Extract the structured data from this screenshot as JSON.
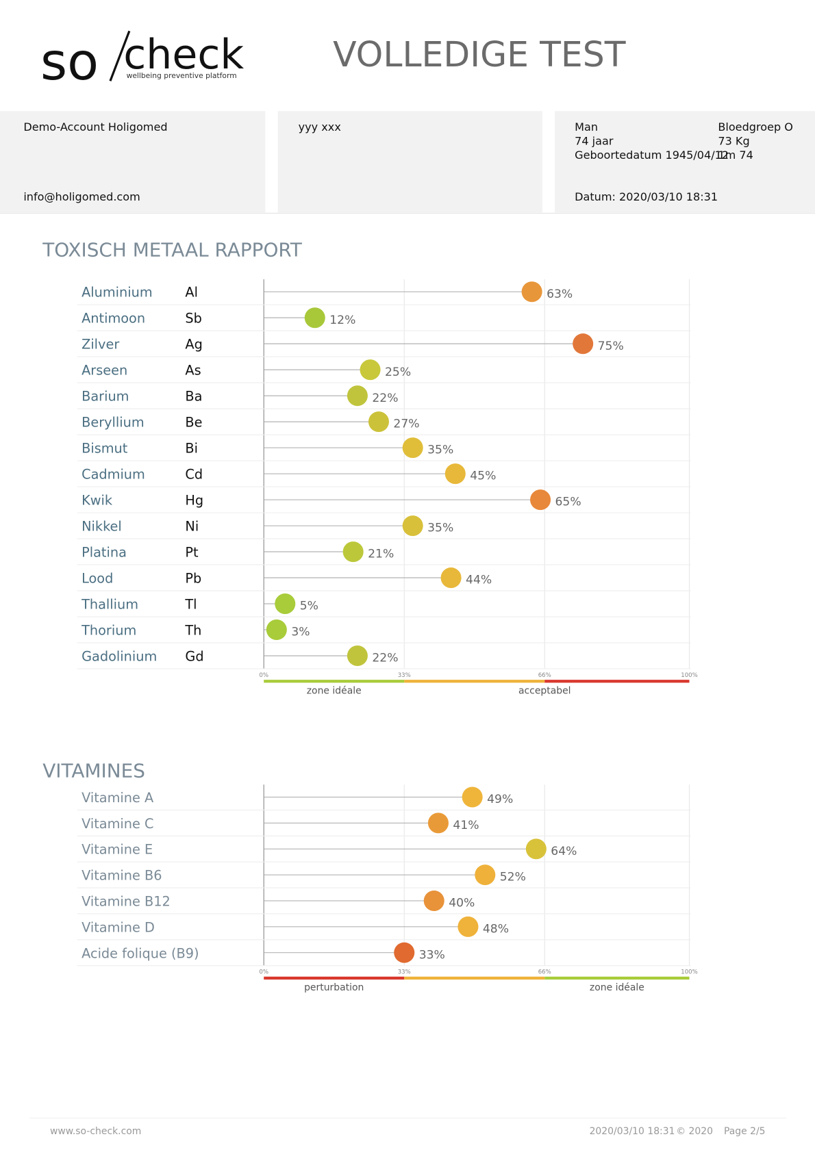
{
  "header": {
    "logo_so": "so",
    "logo_check": "check",
    "tagline": "wellbeing preventive platform",
    "title": "VOLLEDIGE TEST"
  },
  "info": {
    "account": "Demo-Account Holigomed",
    "email": "info@holigomed.com",
    "name": "yyy xxx",
    "gender": "Man",
    "age": "74 jaar",
    "birth": "Geboortedatum 1945/04/12",
    "blood": "Bloedgroep O",
    "weight": "73 Kg",
    "height": "1m 74",
    "date": "Datum: 2020/03/10 18:31"
  },
  "chart_data": [
    {
      "type": "lollipop",
      "title": "TOXISCH METAAL RAPPORT",
      "categories": [
        "Aluminium",
        "Antimoon",
        "Zilver",
        "Arseen",
        "Barium",
        "Beryllium",
        "Bismut",
        "Cadmium",
        "Kwik",
        "Nikkel",
        "Platina",
        "Lood",
        "Thallium",
        "Thorium",
        "Gadolinium"
      ],
      "symbols": [
        "Al",
        "Sb",
        "Ag",
        "As",
        "Ba",
        "Be",
        "Bi",
        "Cd",
        "Hg",
        "Ni",
        "Pt",
        "Pb",
        "Tl",
        "Th",
        "Gd"
      ],
      "values": [
        63,
        12,
        75,
        25,
        22,
        27,
        35,
        45,
        65,
        35,
        21,
        44,
        5,
        3,
        22
      ],
      "value_labels": [
        "63%",
        "12%",
        "75%",
        "25%",
        "22%",
        "27%",
        "35%",
        "45%",
        "65%",
        "35%",
        "21%",
        "44%",
        "5%",
        "3%",
        "22%"
      ],
      "colors": [
        "#e8963a",
        "#a8c83a",
        "#e2773a",
        "#c8c83a",
        "#c0c43c",
        "#ccc23a",
        "#e0be3a",
        "#e8b83a",
        "#e8883a",
        "#d8c03a",
        "#bcc83a",
        "#e8b83a",
        "#a8cc3a",
        "#a8cc3a",
        "#c0c43c"
      ],
      "xlim": [
        0,
        100
      ],
      "xticks": [
        {
          "value": 0,
          "label": "0%"
        },
        {
          "value": 33,
          "label": "33%"
        },
        {
          "value": 66,
          "label": "66%"
        },
        {
          "value": 100,
          "label": "100%"
        }
      ],
      "zones": [
        {
          "from": 0,
          "to": 33,
          "color": "#a8cc3a"
        },
        {
          "from": 33,
          "to": 66,
          "color": "#efb33a"
        },
        {
          "from": 66,
          "to": 100,
          "color": "#d9382e"
        }
      ],
      "zone_labels": [
        {
          "label": "zone idéale",
          "value": 16.5
        },
        {
          "label": "acceptabel",
          "value": 66
        }
      ]
    },
    {
      "type": "lollipop",
      "title": "VITAMINES",
      "categories": [
        "Vitamine A",
        "Vitamine C",
        "Vitamine E",
        "Vitamine B6",
        "Vitamine B12",
        "Vitamine D",
        "Acide folique (B9)"
      ],
      "values": [
        49,
        41,
        64,
        52,
        40,
        48,
        33
      ],
      "value_labels": [
        "49%",
        "41%",
        "64%",
        "52%",
        "40%",
        "48%",
        "33%"
      ],
      "colors": [
        "#efb53a",
        "#e99a38",
        "#d8c23a",
        "#efb13a",
        "#e8923a",
        "#efb23a",
        "#e06a30"
      ],
      "xlim": [
        0,
        100
      ],
      "xticks": [
        {
          "value": 0,
          "label": "0%"
        },
        {
          "value": 33,
          "label": "33%"
        },
        {
          "value": 66,
          "label": "66%"
        },
        {
          "value": 100,
          "label": "100%"
        }
      ],
      "zones": [
        {
          "from": 0,
          "to": 33,
          "color": "#d9382e"
        },
        {
          "from": 33,
          "to": 66,
          "color": "#efb33a"
        },
        {
          "from": 66,
          "to": 100,
          "color": "#a8cc3a"
        }
      ],
      "zone_labels": [
        {
          "label": "perturbation",
          "value": 16.5
        },
        {
          "label": "zone idéale",
          "value": 83
        }
      ]
    }
  ],
  "footer": {
    "url": "www.so-check.com",
    "date": "2020/03/10 18:31",
    "copyright": "© 2020",
    "page": "Page 2/5"
  }
}
